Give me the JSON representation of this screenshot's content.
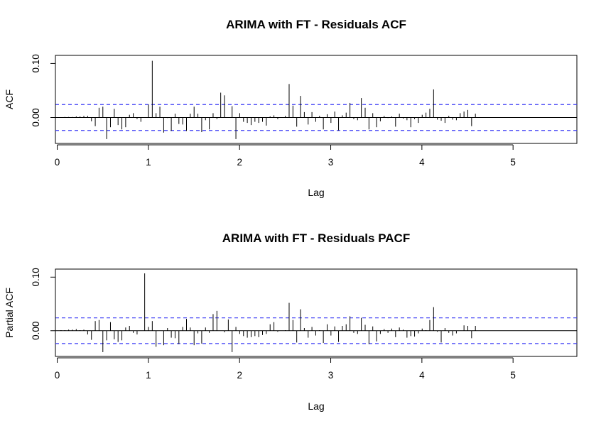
{
  "chart_data": [
    {
      "type": "bar",
      "title": "ARIMA with FT - Residuals ACF",
      "xlabel": "Lag",
      "ylabel": "ACF",
      "xlim": [
        -0.02,
        5.7
      ],
      "ylim": [
        -0.048,
        0.115
      ],
      "xticks": [
        0,
        1,
        2,
        3,
        4,
        5
      ],
      "xtick_labels": [
        "0",
        "1",
        "2",
        "3",
        "4",
        "5"
      ],
      "yticks": [
        0.0,
        0.1
      ],
      "ytick_labels": [
        "0.00",
        "0.10"
      ],
      "conf_bound": 0.024,
      "lag_step": 0.0417,
      "values": [
        0.0,
        0.001,
        0.001,
        0.001,
        0.002,
        0.002,
        0.003,
        0.003,
        -0.007,
        -0.016,
        0.018,
        0.02,
        -0.04,
        -0.018,
        0.016,
        -0.014,
        -0.022,
        -0.018,
        0.005,
        0.008,
        -0.003,
        -0.008,
        0.0,
        0.024,
        0.105,
        0.008,
        0.02,
        -0.028,
        -0.001,
        -0.025,
        0.007,
        -0.012,
        -0.013,
        -0.025,
        0.007,
        0.02,
        0.007,
        -0.027,
        -0.005,
        -0.022,
        0.008,
        -0.003,
        0.046,
        0.041,
        0.0,
        0.021,
        -0.04,
        0.008,
        -0.008,
        -0.01,
        -0.014,
        -0.008,
        -0.01,
        -0.008,
        -0.015,
        0.002,
        0.004,
        -0.003,
        0.0,
        0.003,
        0.062,
        0.022,
        -0.017,
        0.04,
        0.01,
        -0.013,
        0.01,
        -0.008,
        0.003,
        -0.022,
        0.006,
        -0.01,
        0.011,
        -0.024,
        0.004,
        0.009,
        0.027,
        -0.003,
        -0.005,
        0.036,
        0.018,
        -0.022,
        0.008,
        -0.018,
        -0.007,
        0.003,
        -0.001,
        0.002,
        -0.017,
        0.007,
        -0.002,
        -0.005,
        -0.018,
        -0.003,
        -0.01,
        0.005,
        0.009,
        0.016,
        0.052,
        -0.004,
        -0.006,
        -0.01,
        0.003,
        -0.004,
        -0.005,
        0.008,
        0.011,
        0.014,
        -0.016,
        0.007,
        0.0,
        0.0,
        0.0,
        0.0
      ]
    },
    {
      "type": "bar",
      "title": "ARIMA with FT - Residuals PACF",
      "xlabel": "Lag",
      "ylabel": "Partial ACF",
      "xlim": [
        -0.02,
        5.7
      ],
      "ylim": [
        -0.048,
        0.115
      ],
      "xticks": [
        0,
        1,
        2,
        3,
        4,
        5
      ],
      "xtick_labels": [
        "0",
        "1",
        "2",
        "3",
        "4",
        "5"
      ],
      "yticks": [
        0.0,
        0.1
      ],
      "ytick_labels": [
        "0.00",
        "0.10"
      ],
      "conf_bound": 0.024,
      "lag_step": 0.0417,
      "values": [
        0.001,
        0.001,
        0.002,
        0.002,
        0.003,
        0.001,
        0.002,
        -0.007,
        -0.017,
        0.018,
        0.02,
        -0.04,
        -0.018,
        0.016,
        -0.016,
        -0.021,
        -0.018,
        0.006,
        0.009,
        -0.004,
        -0.007,
        0.0,
        0.107,
        0.007,
        0.018,
        -0.03,
        0.0,
        -0.027,
        0.005,
        -0.013,
        -0.014,
        -0.025,
        0.007,
        0.022,
        0.006,
        -0.027,
        -0.005,
        -0.024,
        0.006,
        -0.004,
        0.031,
        0.037,
        0.0,
        -0.003,
        0.021,
        -0.04,
        0.007,
        -0.006,
        -0.01,
        -0.013,
        -0.012,
        -0.01,
        -0.012,
        -0.008,
        -0.006,
        0.012,
        0.016,
        -0.002,
        0.0,
        0.001,
        0.052,
        0.02,
        -0.022,
        0.04,
        0.005,
        -0.013,
        0.007,
        -0.009,
        0.001,
        -0.023,
        0.012,
        -0.009,
        0.008,
        -0.021,
        0.009,
        0.012,
        0.027,
        -0.004,
        -0.006,
        0.024,
        0.011,
        -0.025,
        0.008,
        -0.02,
        -0.006,
        0.003,
        -0.004,
        0.004,
        -0.012,
        0.006,
        0.002,
        -0.013,
        -0.01,
        -0.011,
        -0.005,
        0.004,
        0.001,
        0.02,
        0.044,
        -0.002,
        -0.022,
        0.005,
        -0.004,
        -0.009,
        -0.005,
        0.0,
        0.01,
        0.009,
        -0.014,
        0.009,
        0.0,
        0.0,
        0.0,
        0.0
      ]
    }
  ]
}
